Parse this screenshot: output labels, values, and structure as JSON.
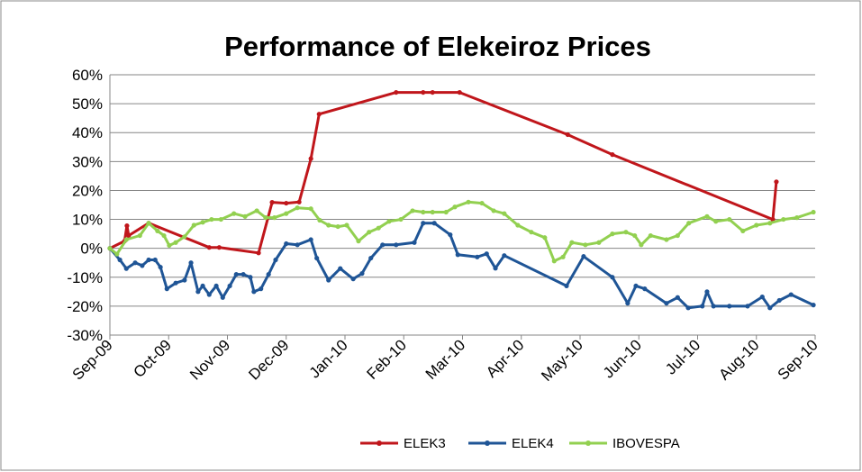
{
  "chart_data": {
    "type": "line",
    "title": "Performance of Elekeiroz Prices",
    "xlim": [
      0,
      12
    ],
    "xticks": [
      {
        "value": 0,
        "label": "Sep-09"
      },
      {
        "value": 1,
        "label": "Oct-09"
      },
      {
        "value": 2,
        "label": "Nov-09"
      },
      {
        "value": 3,
        "label": "Dec-09"
      },
      {
        "value": 4,
        "label": "Jan-10"
      },
      {
        "value": 5,
        "label": "Feb-10"
      },
      {
        "value": 6,
        "label": "Mar-10"
      },
      {
        "value": 7,
        "label": "Apr-10"
      },
      {
        "value": 8,
        "label": "May-10"
      },
      {
        "value": 9,
        "label": "Jun-10"
      },
      {
        "value": 10,
        "label": "Jul-10"
      },
      {
        "value": 11,
        "label": "Aug-10"
      },
      {
        "value": 12,
        "label": "Sep-10"
      }
    ],
    "ylim": [
      -30,
      60
    ],
    "yticks": [
      {
        "value": -30,
        "label": "-30%"
      },
      {
        "value": -20,
        "label": "-20%"
      },
      {
        "value": -10,
        "label": "-10%"
      },
      {
        "value": 0,
        "label": "0%"
      },
      {
        "value": 10,
        "label": "10%"
      },
      {
        "value": 20,
        "label": "20%"
      },
      {
        "value": 30,
        "label": "30%"
      },
      {
        "value": 40,
        "label": "40%"
      },
      {
        "value": 50,
        "label": "50%"
      },
      {
        "value": 60,
        "label": "60%"
      }
    ],
    "grid": true,
    "legend": "bottom",
    "series": [
      {
        "name": "ELEK3",
        "color": "#c0161b",
        "x": [
          0,
          0.25,
          0.29,
          0.32,
          0.66,
          1.69,
          1.86,
          2.53,
          2.76,
          3.0,
          3.22,
          3.42,
          3.56,
          4.87,
          5.33,
          5.49,
          5.95,
          7.79,
          8.55,
          11.28,
          11.34
        ],
        "values": [
          0,
          2.5,
          7.8,
          4.4,
          8.7,
          0.3,
          0.3,
          -1.6,
          15.9,
          15.6,
          16.0,
          31,
          46.4,
          53.9,
          53.9,
          53.9,
          53.9,
          39.3,
          32.4,
          10,
          23
        ]
      },
      {
        "name": "ELEK4",
        "color": "#1f5596",
        "x": [
          0,
          0.17,
          0.28,
          0.43,
          0.55,
          0.66,
          0.77,
          0.86,
          0.97,
          1.12,
          1.27,
          1.38,
          1.5,
          1.58,
          1.69,
          1.81,
          1.92,
          2.04,
          2.15,
          2.27,
          2.39,
          2.45,
          2.57,
          2.7,
          2.82,
          3.0,
          3.19,
          3.42,
          3.52,
          3.72,
          3.92,
          4.14,
          4.29,
          4.44,
          4.64,
          4.87,
          5.18,
          5.33,
          5.52,
          5.79,
          5.92,
          6.25,
          6.41,
          6.56,
          6.71,
          7.77,
          8.06,
          8.55,
          8.81,
          8.95,
          9.1,
          9.47,
          9.66,
          9.84,
          10.08,
          10.16,
          10.27,
          10.54,
          10.85,
          11.1,
          11.23,
          11.39,
          11.59,
          11.97
        ],
        "values": [
          0,
          -4,
          -7,
          -5,
          -6,
          -4,
          -4,
          -6.5,
          -14,
          -12,
          -11,
          -5,
          -15,
          -13,
          -16,
          -13,
          -17,
          -13,
          -9,
          -9,
          -10,
          -15,
          -14,
          -9,
          -4,
          1.6,
          1.2,
          3,
          -3.4,
          -11,
          -7,
          -10.6,
          -8.7,
          -3.4,
          1.2,
          1.2,
          2,
          8.7,
          8.7,
          4.7,
          -2.2,
          -3,
          -1.9,
          -6.9,
          -2.5,
          -13,
          -2.8,
          -10,
          -19,
          -13,
          -14,
          -19,
          -17,
          -20.6,
          -20,
          -15,
          -20,
          -20,
          -20,
          -16.8,
          -20.6,
          -18,
          -16,
          -19.6
        ]
      },
      {
        "name": "IBOVESPA",
        "color": "#92d050",
        "x": [
          0,
          0.12,
          0.28,
          0.51,
          0.66,
          0.81,
          0.92,
          1.01,
          1.12,
          1.27,
          1.43,
          1.58,
          1.73,
          1.89,
          2.11,
          2.3,
          2.5,
          2.65,
          2.8,
          3.0,
          3.19,
          3.42,
          3.57,
          3.72,
          3.88,
          4.03,
          4.23,
          4.41,
          4.57,
          4.75,
          4.95,
          5.15,
          5.33,
          5.49,
          5.72,
          5.87,
          6.1,
          6.33,
          6.53,
          6.71,
          6.94,
          7.17,
          7.4,
          7.56,
          7.71,
          7.86,
          8.09,
          8.32,
          8.55,
          8.78,
          8.93,
          9.04,
          9.2,
          9.47,
          9.66,
          9.85,
          10.16,
          10.31,
          10.54,
          10.77,
          11.0,
          11.23,
          11.46,
          11.69,
          11.97
        ],
        "values": [
          0,
          -2,
          3,
          4.4,
          8.7,
          6,
          4.4,
          1,
          2,
          4,
          8,
          9,
          10,
          10,
          12,
          11,
          13,
          10.6,
          10.6,
          12,
          14,
          13.7,
          9.7,
          8,
          7.5,
          8,
          2.5,
          5.6,
          7,
          9.3,
          10,
          13,
          12.5,
          12.5,
          12.5,
          14.3,
          16,
          15.6,
          13,
          12,
          8,
          5.6,
          3.7,
          -4.4,
          -3,
          2,
          1.2,
          2,
          5,
          5.6,
          4.4,
          1.2,
          4.4,
          3,
          4.4,
          8.7,
          11,
          9.3,
          10,
          6,
          8,
          8.7,
          10,
          10.6,
          12.5
        ]
      }
    ]
  }
}
